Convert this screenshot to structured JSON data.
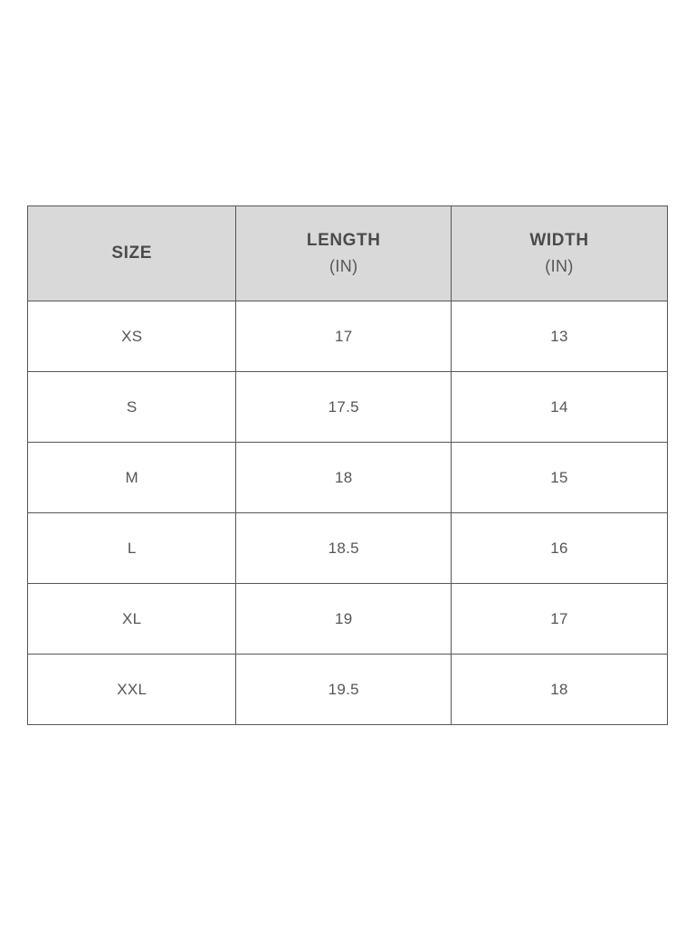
{
  "colors": {
    "page_background": "#ffffff",
    "header_background": "#d9d9d9",
    "border": "#54565a",
    "header_text": "#4a4b4d",
    "body_text": "#55565a"
  },
  "chart_data": {
    "type": "table",
    "title": "",
    "columns": [
      {
        "title": "SIZE",
        "subtitle": ""
      },
      {
        "title": "LENGTH",
        "subtitle": "(IN)"
      },
      {
        "title": "WIDTH",
        "subtitle": "(IN)"
      }
    ],
    "rows": [
      {
        "size": "XS",
        "length": "17",
        "width": "13"
      },
      {
        "size": "S",
        "length": "17.5",
        "width": "14"
      },
      {
        "size": "M",
        "length": "18",
        "width": "15"
      },
      {
        "size": "L",
        "length": "18.5",
        "width": "16"
      },
      {
        "size": "XL",
        "length": "19",
        "width": "17"
      },
      {
        "size": "XXL",
        "length": "19.5",
        "width": "18"
      }
    ]
  }
}
